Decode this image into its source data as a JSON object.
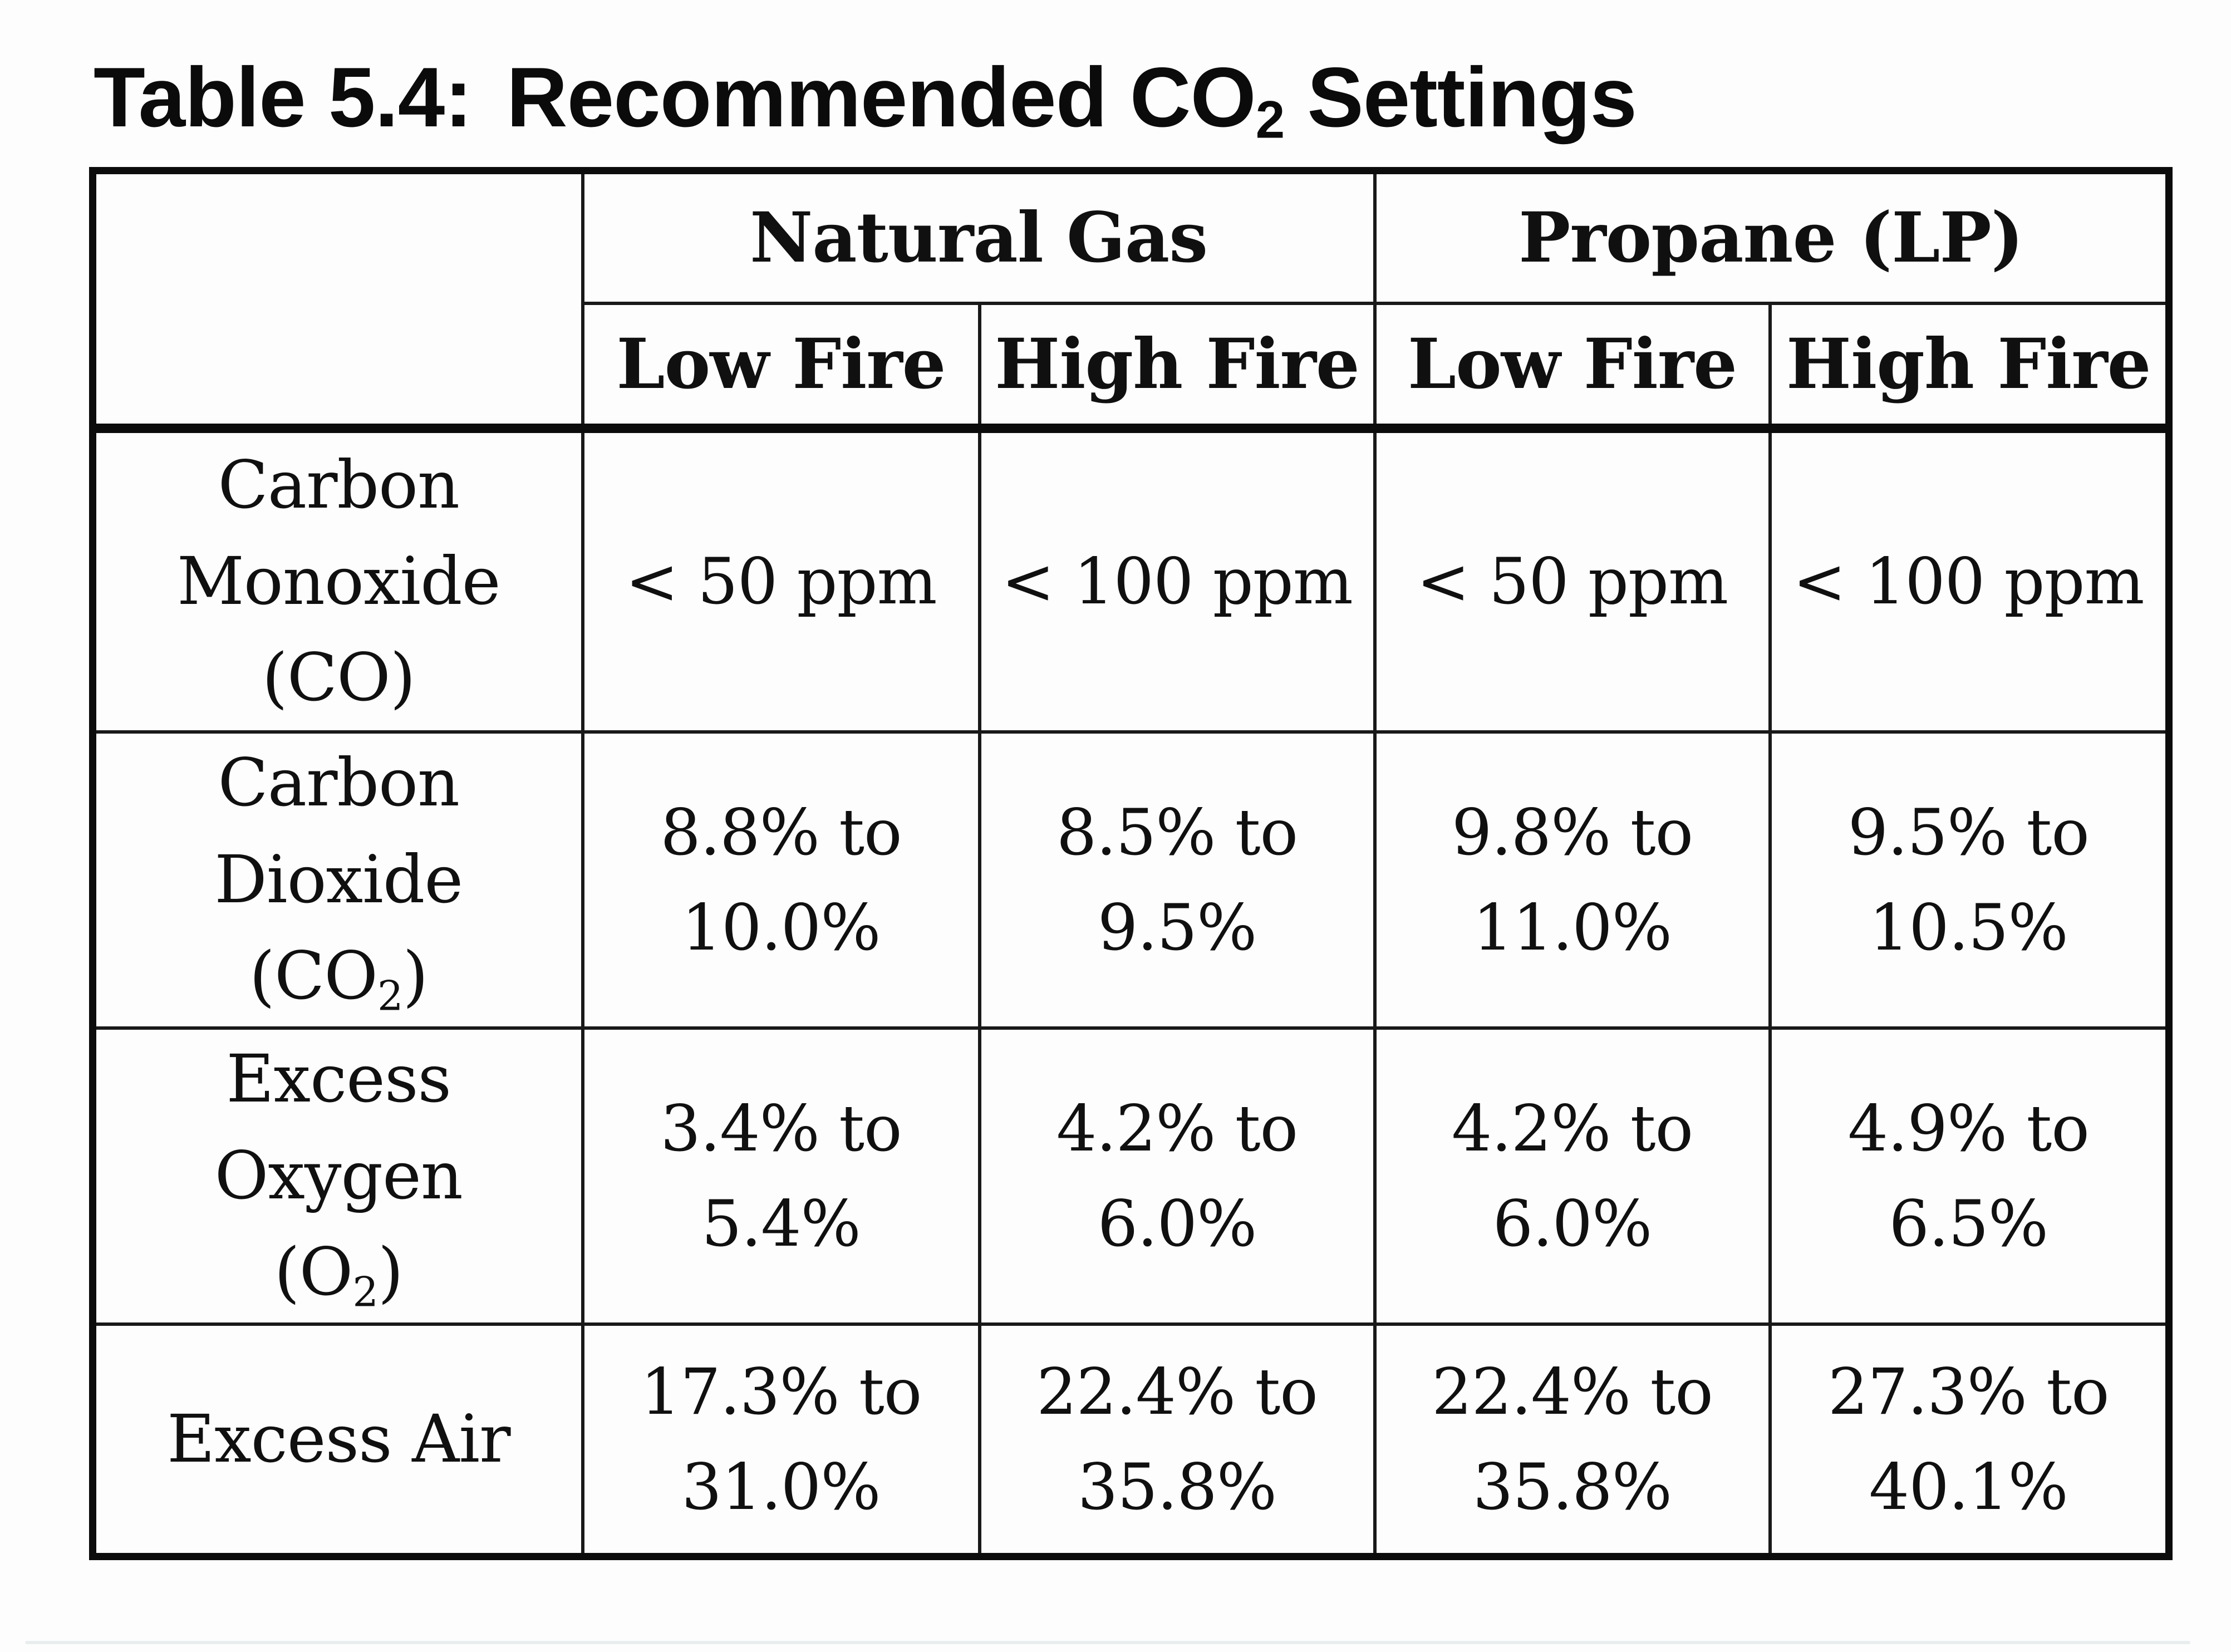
{
  "colors": {
    "background": "#fdfdfd",
    "text": "#101010",
    "border": "#0c0c0c"
  },
  "title": {
    "prefix": "Table 5.4:",
    "main_pre": "Recommended CO",
    "main_sub": "2",
    "main_post": " Settings"
  },
  "table": {
    "group_headers": [
      "Natural Gas",
      "Propane (LP)"
    ],
    "sub_headers": [
      "Low Fire",
      "High Fire",
      "Low Fire",
      "High Fire"
    ],
    "rows": [
      {
        "label": {
          "line1": "Carbon",
          "line2": "Monoxide",
          "formula_pre": "(CO",
          "formula_sub": "",
          "formula_post": ")"
        },
        "values": [
          "< 50 ppm",
          "< 100 ppm",
          "< 50 ppm",
          "< 100 ppm"
        ]
      },
      {
        "label": {
          "line1": "Carbon",
          "line2": "Dioxide",
          "formula_pre": "(CO",
          "formula_sub": "2",
          "formula_post": ")"
        },
        "values": [
          "8.8% to\n10.0%",
          "8.5% to\n9.5%",
          "9.8% to\n11.0%",
          "9.5% to\n10.5%"
        ]
      },
      {
        "label": {
          "line1": "Excess",
          "line2": "Oxygen",
          "formula_pre": "(O",
          "formula_sub": "2",
          "formula_post": ")"
        },
        "values": [
          "3.4% to\n5.4%",
          "4.2% to\n6.0%",
          "4.2% to\n6.0%",
          "4.9% to\n6.5%"
        ]
      },
      {
        "label": {
          "line1": "Excess Air"
        },
        "values": [
          "17.3% to\n31.0%",
          "22.4% to\n35.8%",
          "22.4% to\n35.8%",
          "27.3% to\n40.1%"
        ]
      }
    ]
  }
}
